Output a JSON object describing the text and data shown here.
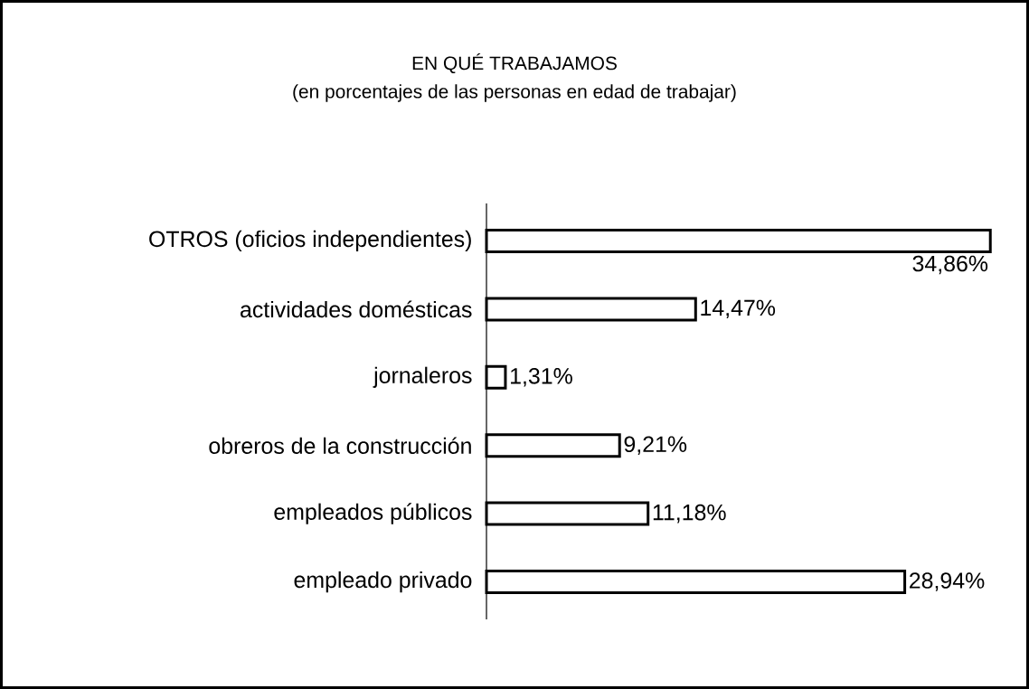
{
  "chart_data": {
    "type": "bar",
    "orientation": "horizontal",
    "title": "EN QUÉ TRABAJAMOS",
    "subtitle": "(en porcentajes de las personas en edad de trabajar)",
    "categories": [
      "OTROS (oficios independientes)",
      "actividades domésticas",
      "jornaleros",
      "obreros de la construcción",
      "empleados públicos",
      "empleado privado"
    ],
    "values": [
      34.86,
      14.47,
      1.31,
      9.21,
      11.18,
      28.94
    ],
    "value_labels": [
      "34,86%",
      "14,47%",
      "1,31%",
      "9,21%",
      "11,18%",
      "28,94%"
    ],
    "color": "#ffffff"
  }
}
